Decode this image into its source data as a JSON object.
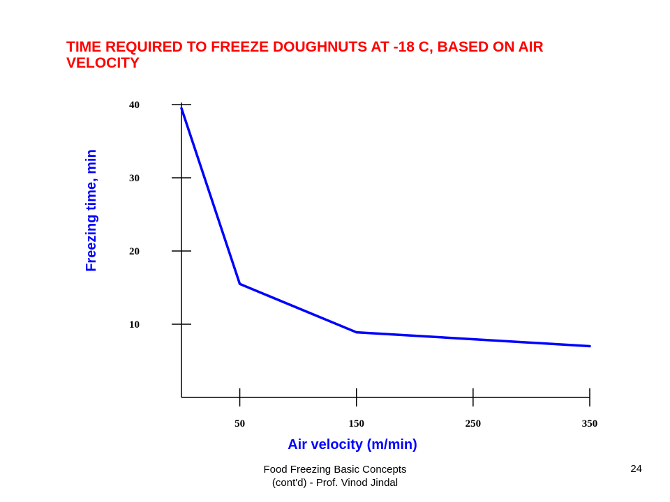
{
  "slide": {
    "title": "TIME REQUIRED TO FREEZE DOUGHNUTS AT -18 C, BASED ON AIR VELOCITY",
    "footer_line1": "Food Freezing Basic Concepts",
    "footer_line2": "(cont'd) - Prof. Vinod Jindal",
    "page_number": "24"
  },
  "colors": {
    "title": "#ff0000",
    "series": "#0000ff",
    "axis_title": "#0000ff",
    "axes": "#000000"
  },
  "chart_data": {
    "type": "line",
    "title": "TIME REQUIRED TO FREEZE DOUGHNUTS AT -18 C, BASED ON AIR VELOCITY",
    "xlabel": "Air velocity  (m/min)",
    "ylabel": "Freezing time, min",
    "xlim": [
      0,
      350
    ],
    "ylim": [
      0,
      40
    ],
    "x_ticks": [
      50,
      150,
      250,
      350
    ],
    "y_ticks": [
      10,
      20,
      30,
      40
    ],
    "grid": false,
    "series": [
      {
        "x": [
          0,
          50,
          150,
          350
        ],
        "y": [
          39.5,
          15.5,
          8.9,
          7.0
        ]
      }
    ]
  }
}
